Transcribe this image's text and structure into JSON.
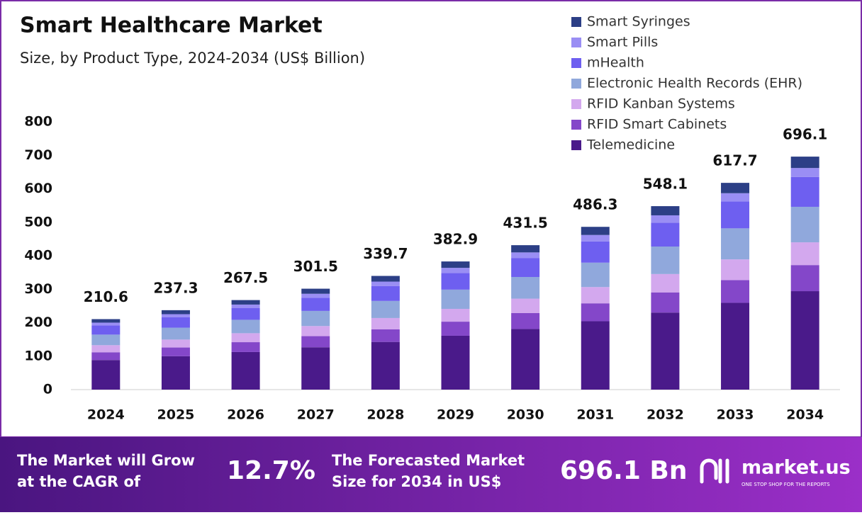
{
  "chart_data": {
    "type": "stacked_bar",
    "title": "Smart Healthcare Market",
    "subtitle": "Size, by Product Type, 2024-2034 (US$ Billion)",
    "categories": [
      "2024",
      "2025",
      "2026",
      "2027",
      "2028",
      "2029",
      "2030",
      "2031",
      "2032",
      "2033",
      "2034"
    ],
    "totals": [
      210.6,
      237.3,
      267.5,
      301.5,
      339.7,
      382.9,
      431.5,
      486.3,
      548.1,
      617.7,
      696.1
    ],
    "series": [
      {
        "name": "Telemedicine",
        "color": "#4a1a8a",
        "values": [
          88.4,
          99.7,
          112.3,
          126.5,
          142.5,
          160.9,
          181.1,
          204.3,
          230.2,
          259.4,
          294.1
        ]
      },
      {
        "name": "RFID Smart Cabinets",
        "color": "#8447c9",
        "values": [
          23.2,
          26.1,
          29.4,
          33.2,
          37.4,
          42.1,
          47.5,
          53.5,
          60.3,
          67.9,
          78
        ]
      },
      {
        "name": "RFID Kanban Systems",
        "color": "#d3a8ee",
        "values": [
          21.1,
          23.7,
          26.8,
          30.2,
          34.0,
          38.3,
          43.2,
          48.6,
          54.8,
          61.8,
          68
        ]
      },
      {
        "name": "Electronic Health Records (EHR)",
        "color": "#90a8dc",
        "values": [
          31.6,
          35.6,
          40.1,
          45.2,
          51.0,
          57.4,
          64.7,
          72.9,
          82.2,
          92.7,
          106
        ]
      },
      {
        "name": "mHealth",
        "color": "#6e5ff0",
        "values": [
          27.4,
          30.8,
          34.8,
          39.2,
          44.2,
          49.8,
          56.1,
          63.2,
          71.3,
          80.3,
          89
        ]
      },
      {
        "name": "Smart Pills",
        "color": "#9a8ef4",
        "values": [
          8.4,
          9.5,
          10.7,
          12.1,
          13.6,
          15.3,
          17.3,
          19.5,
          21.9,
          24.7,
          27
        ]
      },
      {
        "name": "Smart Syringes",
        "color": "#2c3f86",
        "values": [
          10.5,
          11.9,
          13.4,
          15.1,
          17.0,
          19.1,
          21.6,
          24.3,
          27.4,
          30.9,
          34
        ]
      }
    ],
    "ylim": [
      0,
      800
    ],
    "yticks": [
      0,
      100,
      200,
      300,
      400,
      500,
      600,
      700,
      800
    ],
    "grid": false
  },
  "footer": {
    "cagr_text": [
      "The Market will Grow",
      "at the CAGR of"
    ],
    "cagr": "12.7%",
    "forecast_text": [
      "The Forecasted Market",
      "Size for 2034 in US$"
    ],
    "forecast": "696.1 Bn",
    "brand": "market.us",
    "tagline": "ONE STOP SHOP FOR THE REPORTS"
  }
}
